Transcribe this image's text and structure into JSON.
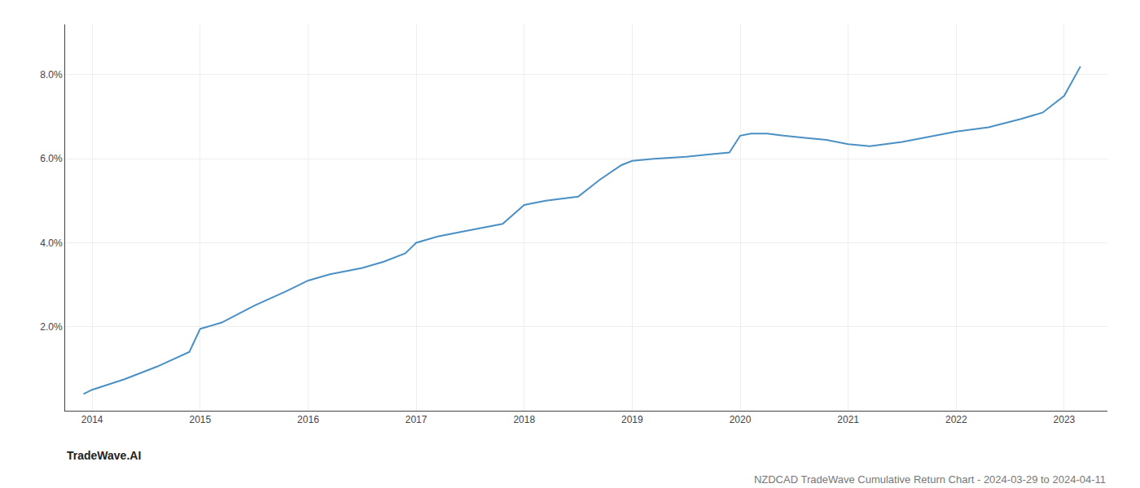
{
  "chart_data": {
    "type": "line",
    "title": "NZDCAD TradeWave Cumulative Return Chart - 2024-03-29 to 2024-04-11",
    "annotations": [
      "TradeWave.AI"
    ],
    "x": [
      2013.92,
      2014.0,
      2014.3,
      2014.6,
      2014.9,
      2015.0,
      2015.2,
      2015.5,
      2015.8,
      2016.0,
      2016.2,
      2016.5,
      2016.7,
      2016.9,
      2017.0,
      2017.2,
      2017.4,
      2017.6,
      2017.8,
      2018.0,
      2018.2,
      2018.5,
      2018.7,
      2018.9,
      2019.0,
      2019.2,
      2019.5,
      2019.7,
      2019.9,
      2020.0,
      2020.1,
      2020.25,
      2020.4,
      2020.6,
      2020.8,
      2021.0,
      2021.1,
      2021.2,
      2021.5,
      2021.7,
      2021.9,
      2022.0,
      2022.3,
      2022.6,
      2022.8,
      2023.0,
      2023.15
    ],
    "values": [
      0.4,
      0.5,
      0.75,
      1.05,
      1.4,
      1.95,
      2.1,
      2.5,
      2.85,
      3.1,
      3.25,
      3.4,
      3.55,
      3.75,
      4.0,
      4.15,
      4.25,
      4.35,
      4.45,
      4.9,
      5.0,
      5.1,
      5.5,
      5.85,
      5.95,
      6.0,
      6.05,
      6.1,
      6.15,
      6.55,
      6.6,
      6.6,
      6.55,
      6.5,
      6.45,
      6.35,
      6.32,
      6.3,
      6.4,
      6.5,
      6.6,
      6.65,
      6.75,
      6.95,
      7.1,
      7.5,
      8.2
    ],
    "color": "#4a90c4",
    "xlim": [
      2013.75,
      2023.4
    ],
    "ylim": [
      0.0,
      9.2
    ],
    "xticks": [
      2014,
      2015,
      2016,
      2017,
      2018,
      2019,
      2020,
      2021,
      2022,
      2023
    ],
    "yticks": [
      {
        "value": 2.0,
        "label": "2.0%"
      },
      {
        "value": 4.0,
        "label": "4.0%"
      },
      {
        "value": 6.0,
        "label": "6.0%"
      },
      {
        "value": 8.0,
        "label": "8.0%"
      }
    ],
    "grid": true
  }
}
